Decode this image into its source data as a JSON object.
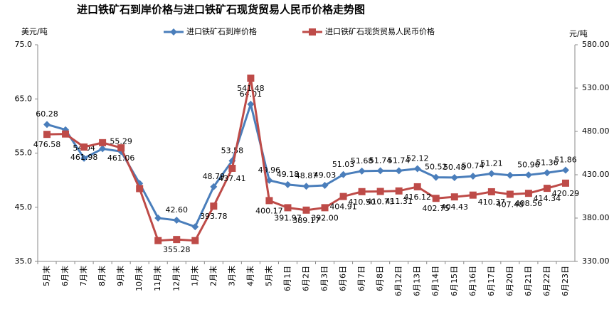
{
  "chart_data": {
    "type": "line",
    "title": "进口铁矿石到岸价格与进口铁矿石现货贸易人民币价格走势图",
    "y_label": "美元/吨",
    "y2_label": "元/吨",
    "categories": [
      "5月末",
      "6月末",
      "7月末",
      "8月末",
      "9月末",
      "10月末",
      "11月末",
      "12月末",
      "1月末",
      "2月末",
      "3月末",
      "4月末",
      "5月末",
      "6月1日",
      "6月2日",
      "6月3日",
      "6月6日",
      "6月7日",
      "6月8日",
      "6月12日",
      "6月13日",
      "6月14日",
      "6月15日",
      "6月16日",
      "6月17日",
      "6月20日",
      "6月21日",
      "6月22日",
      "6月23日"
    ],
    "series": [
      {
        "name": "进口铁矿石到岸价格",
        "color": "#4a7ebb",
        "marker": "diamond",
        "values": [
          60.28,
          59.3,
          54.04,
          55.8,
          55.29,
          49.4,
          43.0,
          42.6,
          41.4,
          48.79,
          53.58,
          64.01,
          49.96,
          49.18,
          48.87,
          49.03,
          51.03,
          51.68,
          51.74,
          51.74,
          52.12,
          50.52,
          50.48,
          50.74,
          51.21,
          50.9,
          50.96,
          51.36,
          51.86
        ],
        "value_labels": [
          "60.28",
          null,
          "54.04",
          null,
          "55.29",
          null,
          null,
          "42.60",
          null,
          "48.79",
          "53.58",
          "64.01",
          "49.96",
          "49.18",
          "48.87",
          "49.03",
          "51.03",
          "51.68",
          "51.74",
          "51.74",
          "52.12",
          "50.52",
          "50.48",
          "50.74",
          "51.21",
          null,
          "50.96",
          "51.36",
          "51.86"
        ]
      },
      {
        "name": "进口铁矿石现货贸易人民币价格",
        "color": "#be4b48",
        "marker": "square",
        "axis": "y2",
        "values": [
          476.58,
          477,
          461.98,
          467,
          461.06,
          414,
          354,
          355.28,
          354,
          393.78,
          437.41,
          541.48,
          400.17,
          391.97,
          389.17,
          392.0,
          404.91,
          410.5,
          410.73,
          411.31,
          416.12,
          402.75,
          404.43,
          406.5,
          410.37,
          407.48,
          408.56,
          414.34,
          420.29
        ],
        "value_labels": [
          "476.58",
          null,
          "461.98",
          null,
          "461.06",
          null,
          null,
          "355.28",
          null,
          "393.78",
          "437.41",
          "541.48",
          "400.17",
          "391.97",
          "389.17",
          "392.00",
          "404.91",
          "410.50",
          "410.73",
          "411.31",
          "416.12",
          "402.75",
          "404.43",
          null,
          "410.37",
          "407.48",
          "408.56",
          "414.34",
          "420.29"
        ]
      }
    ],
    "ylim": [
      35,
      75
    ],
    "yticks": [
      {
        "value": 35,
        "label": "35.0"
      },
      {
        "value": 45,
        "label": "45.0"
      },
      {
        "value": 55,
        "label": "55.0"
      },
      {
        "value": 65,
        "label": "65.0"
      },
      {
        "value": 75,
        "label": "75.0"
      }
    ],
    "y2lim": [
      330,
      580
    ],
    "y2ticks": [
      {
        "value": 330,
        "label": "330.00"
      },
      {
        "value": 380,
        "label": "380.00"
      },
      {
        "value": 430,
        "label": "430.00"
      },
      {
        "value": 480,
        "label": "480.00"
      },
      {
        "value": 530,
        "label": "530.00"
      },
      {
        "value": 580,
        "label": "580.00"
      }
    ],
    "legend": "top"
  }
}
